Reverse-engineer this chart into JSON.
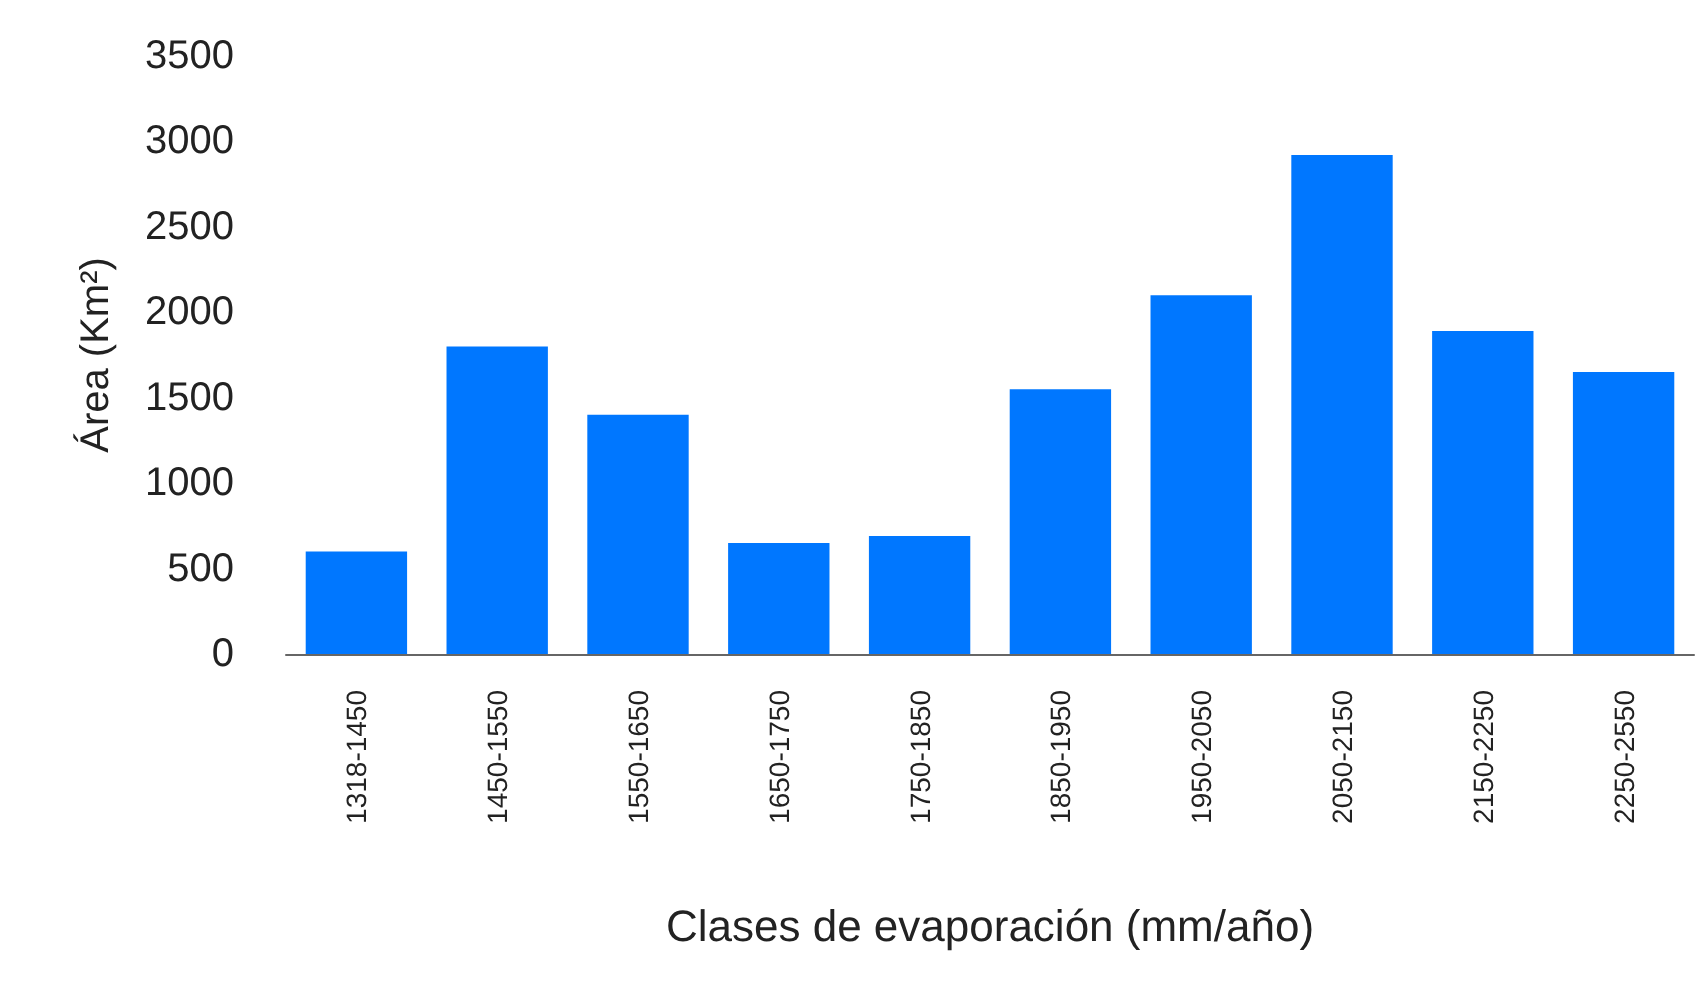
{
  "chart_data": {
    "type": "bar",
    "xlabel": "Clases de evaporación (mm/año)",
    "ylabel": "Área (Km²)",
    "categories": [
      "1318-1450",
      "1450-1550",
      "1550-1650",
      "1650-1750",
      "1750-1850",
      "1850-1950",
      "1950-2050",
      "2050-2150",
      "2150-2250",
      "2250-2550"
    ],
    "values": [
      600,
      1800,
      1400,
      650,
      690,
      1550,
      2100,
      2920,
      1890,
      1650
    ],
    "color": "#0077ff",
    "ylim": [
      0,
      3500
    ],
    "yticks": [
      0,
      500,
      1000,
      1500,
      2000,
      2500,
      3000,
      3500
    ],
    "grid": false
  }
}
